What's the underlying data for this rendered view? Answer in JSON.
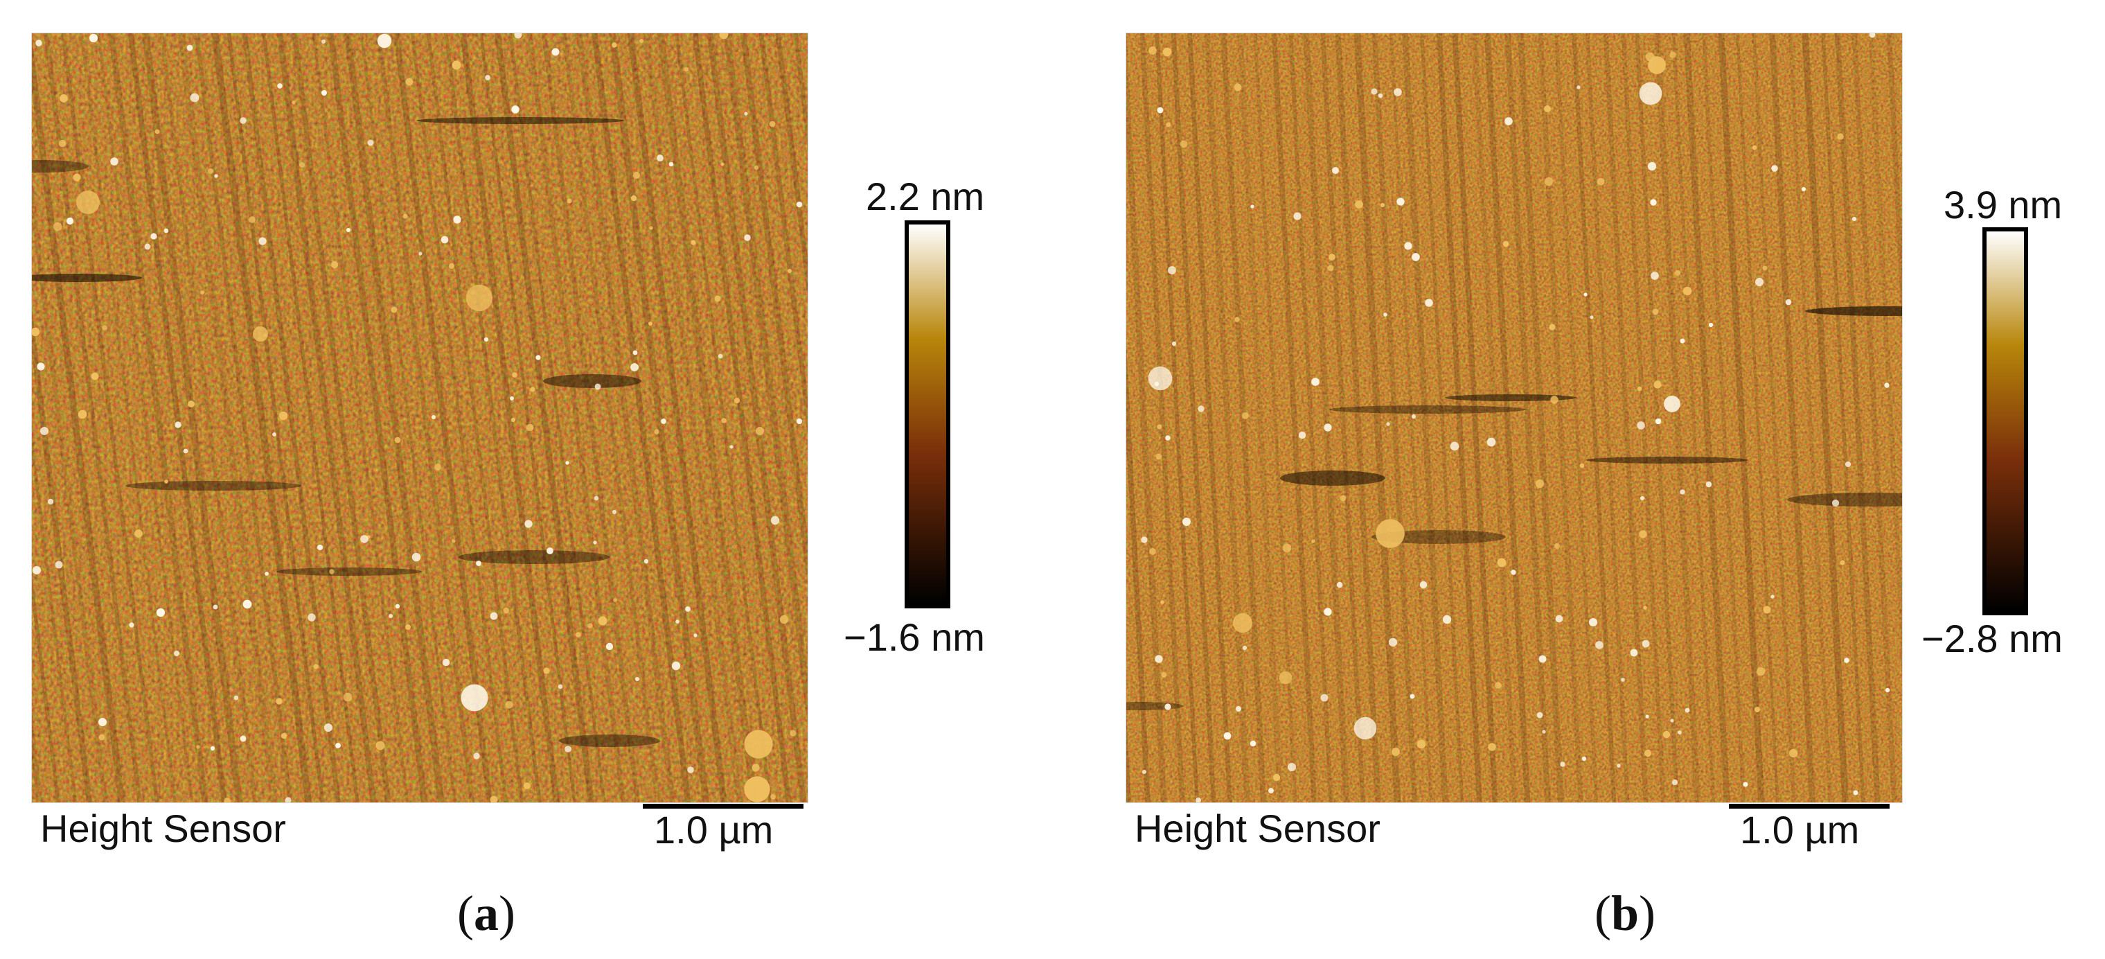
{
  "panels": [
    {
      "id": "a",
      "caption": {
        "open": "(",
        "letter": "a",
        "close": ")"
      },
      "channel_label": "Height Sensor",
      "scalebar_label": "1.0 µm",
      "colorbar": {
        "max_label": "2.2  nm",
        "min_label": "−1.6  nm"
      },
      "colors": {
        "low": "#000000",
        "mid": "#7a2f0a",
        "midhigh": "#b8860b",
        "high": "#ffffff",
        "base": "#8a3a0b"
      }
    },
    {
      "id": "b",
      "caption": {
        "open": "(",
        "letter": "b",
        "close": ")"
      },
      "channel_label": "Height Sensor",
      "scalebar_label": "1.0 µm",
      "colorbar": {
        "max_label": "3.9  nm",
        "min_label": "−2.8  nm"
      },
      "colors": {
        "low": "#000000",
        "mid": "#7a2f0a",
        "midhigh": "#b8860b",
        "high": "#ffffff",
        "base": "#8a3a0b"
      }
    }
  ]
}
